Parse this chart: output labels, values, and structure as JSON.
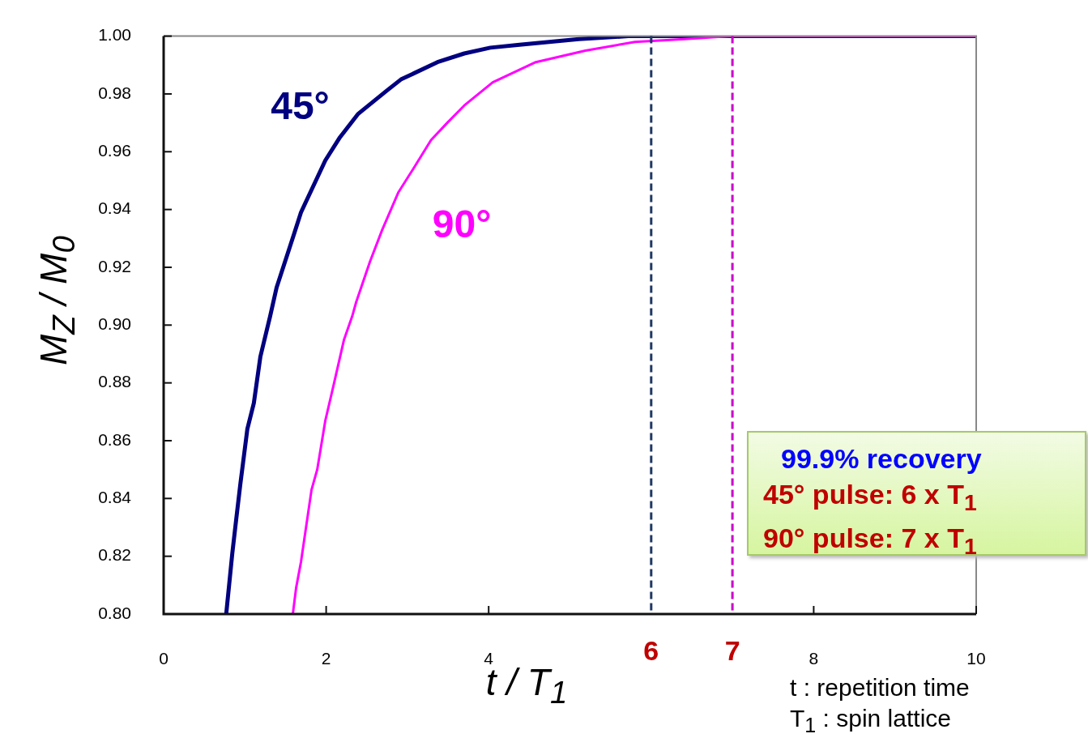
{
  "chart_data": {
    "type": "line",
    "xlabel": "t / T$_{1}$",
    "ylabel": "M$_{Z}$ / M$_{0}$",
    "xlim": [
      0,
      10
    ],
    "xticks": [
      0,
      2,
      4,
      8,
      10
    ],
    "ylim": [
      0.8,
      1.0
    ],
    "yticks": [
      {
        "value": 0.8,
        "label": "0.80"
      },
      {
        "value": 0.82,
        "label": "0.82"
      },
      {
        "value": 0.84,
        "label": "0.84"
      },
      {
        "value": 0.86,
        "label": "0.86"
      },
      {
        "value": 0.88,
        "label": "0.88"
      },
      {
        "value": 0.9,
        "label": "0.90"
      },
      {
        "value": 0.92,
        "label": "0.92"
      },
      {
        "value": 0.94,
        "label": "0.94"
      },
      {
        "value": 0.96,
        "label": "0.96"
      },
      {
        "value": 0.98,
        "label": "0.98"
      },
      {
        "value": 1.0,
        "label": "1.00"
      }
    ],
    "marker": "none",
    "line_style": "solid",
    "legend": false,
    "series": [
      {
        "name": "45°",
        "color": "#000080",
        "x": [
          0.77,
          0.845,
          0.894,
          0.944,
          1.03,
          1.11,
          1.19,
          1.31,
          1.39,
          1.61,
          1.69,
          1.99,
          2.17,
          2.39,
          2.74,
          2.92,
          3.37,
          3.7,
          4.02,
          4.38,
          5.11,
          5.72,
          6.37,
          10
        ],
        "values": [
          0.8,
          0.821,
          0.833,
          0.845,
          0.864,
          0.873,
          0.889,
          0.903,
          0.913,
          0.932,
          0.939,
          0.957,
          0.965,
          0.973,
          0.981,
          0.985,
          0.991,
          0.994,
          0.996,
          0.997,
          0.999,
          1.0,
          1.0,
          1.0
        ]
      },
      {
        "name": "90°",
        "color": "#ff00ff",
        "x": [
          1.59,
          1.63,
          1.69,
          1.82,
          1.89,
          1.99,
          2.09,
          2.22,
          2.32,
          2.37,
          2.54,
          2.69,
          2.89,
          3.07,
          3.29,
          3.49,
          3.7,
          4.05,
          4.58,
          5.19,
          5.8,
          6.41,
          6.98,
          8.25,
          10
        ],
        "values": [
          0.8,
          0.809,
          0.818,
          0.843,
          0.85,
          0.867,
          0.879,
          0.895,
          0.903,
          0.908,
          0.922,
          0.933,
          0.946,
          0.954,
          0.964,
          0.97,
          0.976,
          0.984,
          0.991,
          0.995,
          0.998,
          0.999,
          1.0,
          1.0,
          1.0
        ]
      }
    ],
    "ref_lines": [
      {
        "axis": "x",
        "value": 6,
        "label": "6",
        "color": "#1f3864",
        "line_style": "dashed"
      },
      {
        "axis": "x",
        "value": 7,
        "label": "7",
        "color": "#cc00cc",
        "line_style": "dashed"
      }
    ],
    "annotations": [
      "99.9% recovery",
      "45° pulse: 6 x T$_{1}$",
      "90° pulse: 7 x T$_{1}$",
      "t : repetition time",
      "T$_{1}$ : spin lattice"
    ]
  }
}
